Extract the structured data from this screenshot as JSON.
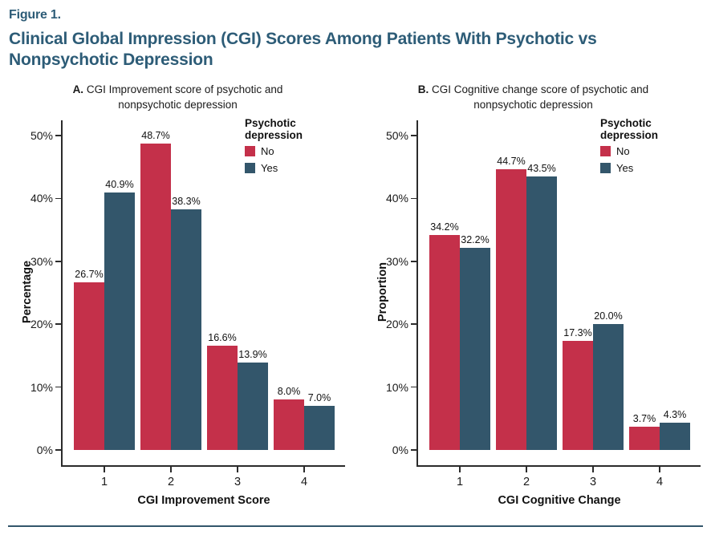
{
  "figure": {
    "label": "Figure 1.",
    "title_line1": "Clinical Global Impression (CGI) Scores Among Patients With Psychotic vs",
    "title_line2": "Nonpsychotic Depression",
    "accent_color": "#2D5C77",
    "rule_color": "#33566B"
  },
  "legend": {
    "title": "Psychotic depression",
    "items": [
      {
        "label": "No",
        "color": "#C4304A"
      },
      {
        "label": "Yes",
        "color": "#33566B"
      }
    ]
  },
  "chart_data": [
    {
      "type": "bar",
      "panel_letter": "A.",
      "title_rest": "CGI Improvement score of psychotic and",
      "title_line2": "nonpsychotic depression",
      "xlabel": "CGI Improvement Score",
      "ylabel": "Percentage",
      "categories": [
        "1",
        "2",
        "3",
        "4"
      ],
      "series": [
        {
          "name": "No",
          "color": "#C4304A",
          "values": [
            26.7,
            48.7,
            16.6,
            8.0
          ],
          "labels": [
            "26.7%",
            "48.7%",
            "16.6%",
            "8.0%"
          ]
        },
        {
          "name": "Yes",
          "color": "#33566B",
          "values": [
            40.9,
            38.3,
            13.9,
            7.0
          ],
          "labels": [
            "40.9%",
            "38.3%",
            "13.9%",
            "7.0%"
          ]
        }
      ],
      "ylim": [
        0,
        50
      ],
      "y_tick_values": [
        0,
        10,
        20,
        30,
        40,
        50
      ],
      "y_ticks": [
        "0%",
        "10%",
        "20%",
        "30%",
        "40%",
        "50%"
      ],
      "grid": false,
      "legend_title": "Psychotic depression",
      "legend_position": "top-right-inside"
    },
    {
      "type": "bar",
      "panel_letter": "B.",
      "title_rest": "CGI Cognitive change score of psychotic and",
      "title_line2": "nonpsychotic depression",
      "xlabel": "CGI Cognitive Change",
      "ylabel": "Proportion",
      "categories": [
        "1",
        "2",
        "3",
        "4"
      ],
      "series": [
        {
          "name": "No",
          "color": "#C4304A",
          "values": [
            34.2,
            44.7,
            17.3,
            3.7
          ],
          "labels": [
            "34.2%",
            "44.7%",
            "17.3%",
            "3.7%"
          ]
        },
        {
          "name": "Yes",
          "color": "#33566B",
          "values": [
            32.2,
            43.5,
            20.0,
            4.3
          ],
          "labels": [
            "32.2%",
            "43.5%",
            "20.0%",
            "4.3%"
          ]
        }
      ],
      "ylim": [
        0,
        50
      ],
      "y_tick_values": [
        0,
        10,
        20,
        30,
        40,
        50
      ],
      "y_ticks": [
        "0%",
        "10%",
        "20%",
        "30%",
        "40%",
        "50%"
      ],
      "grid": false,
      "legend_title": "Psychotic depression",
      "legend_position": "top-right-inside"
    }
  ]
}
